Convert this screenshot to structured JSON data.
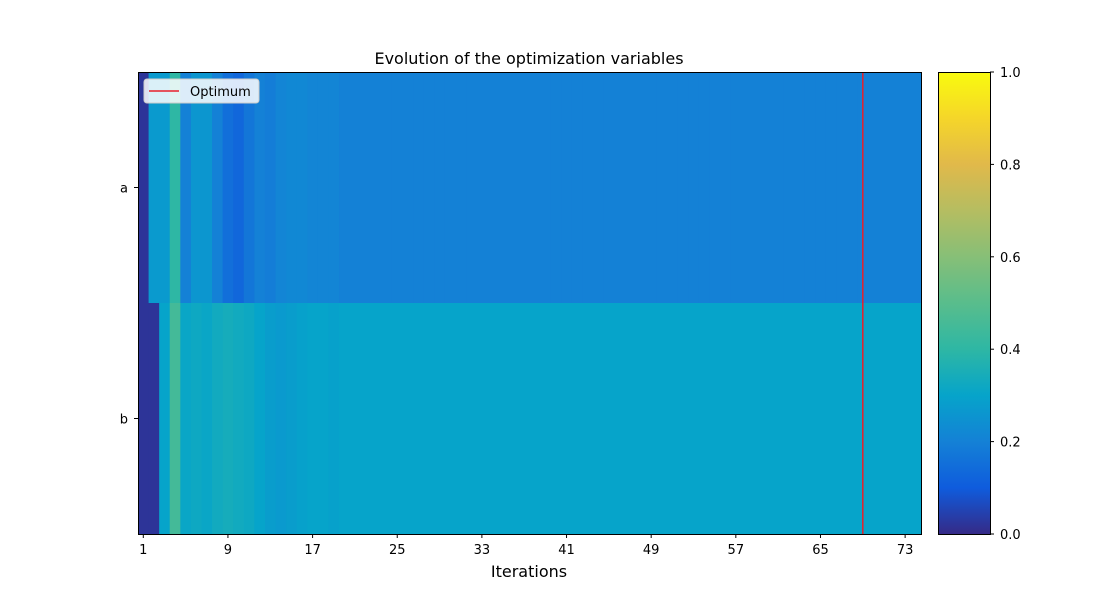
{
  "chart_data": {
    "type": "heatmap",
    "title": "Evolution of the optimization variables",
    "xlabel": "Iterations",
    "ylabel": "",
    "rows": [
      "a",
      "b"
    ],
    "x_ticks": [
      1,
      9,
      17,
      25,
      33,
      41,
      49,
      57,
      65,
      73
    ],
    "n_iterations": 74,
    "optimum_iteration": 69,
    "legend": {
      "entries": [
        "Optimum"
      ],
      "position": "top-left",
      "line_color": "#e8202a"
    },
    "colorbar": {
      "range": [
        0,
        1
      ],
      "ticks": [
        "0.0",
        "0.2",
        "0.4",
        "0.6",
        "0.8",
        "1.0"
      ]
    },
    "colormap": "parula",
    "values": {
      "a": [
        0.02,
        0.27,
        0.27,
        0.4,
        0.2,
        0.26,
        0.26,
        0.2,
        0.15,
        0.13,
        0.17,
        0.2,
        0.19,
        0.21,
        0.22,
        0.22,
        0.21,
        0.21,
        0.21,
        0.2,
        0.2,
        0.2,
        0.2,
        0.2,
        0.2,
        0.2,
        0.2,
        0.2,
        0.2,
        0.2,
        0.2,
        0.2,
        0.2,
        0.2,
        0.2,
        0.2,
        0.2,
        0.2,
        0.2,
        0.2,
        0.2,
        0.2,
        0.2,
        0.2,
        0.2,
        0.2,
        0.2,
        0.2,
        0.2,
        0.2,
        0.2,
        0.2,
        0.2,
        0.2,
        0.2,
        0.2,
        0.2,
        0.2,
        0.2,
        0.2,
        0.2,
        0.2,
        0.2,
        0.2,
        0.2,
        0.2,
        0.2,
        0.2,
        0.2,
        0.2,
        0.2,
        0.2,
        0.2,
        0.2
      ],
      "b": [
        0.02,
        0.02,
        0.3,
        0.45,
        0.31,
        0.32,
        0.31,
        0.33,
        0.34,
        0.33,
        0.32,
        0.3,
        0.28,
        0.27,
        0.28,
        0.29,
        0.3,
        0.3,
        0.29,
        0.3,
        0.3,
        0.3,
        0.3,
        0.3,
        0.3,
        0.3,
        0.3,
        0.3,
        0.3,
        0.3,
        0.3,
        0.3,
        0.3,
        0.3,
        0.3,
        0.3,
        0.3,
        0.3,
        0.3,
        0.3,
        0.3,
        0.3,
        0.3,
        0.3,
        0.3,
        0.3,
        0.3,
        0.3,
        0.3,
        0.3,
        0.3,
        0.3,
        0.3,
        0.3,
        0.3,
        0.3,
        0.3,
        0.3,
        0.3,
        0.3,
        0.3,
        0.3,
        0.3,
        0.3,
        0.3,
        0.3,
        0.3,
        0.3,
        0.3,
        0.3,
        0.3,
        0.3,
        0.3,
        0.3
      ]
    }
  }
}
